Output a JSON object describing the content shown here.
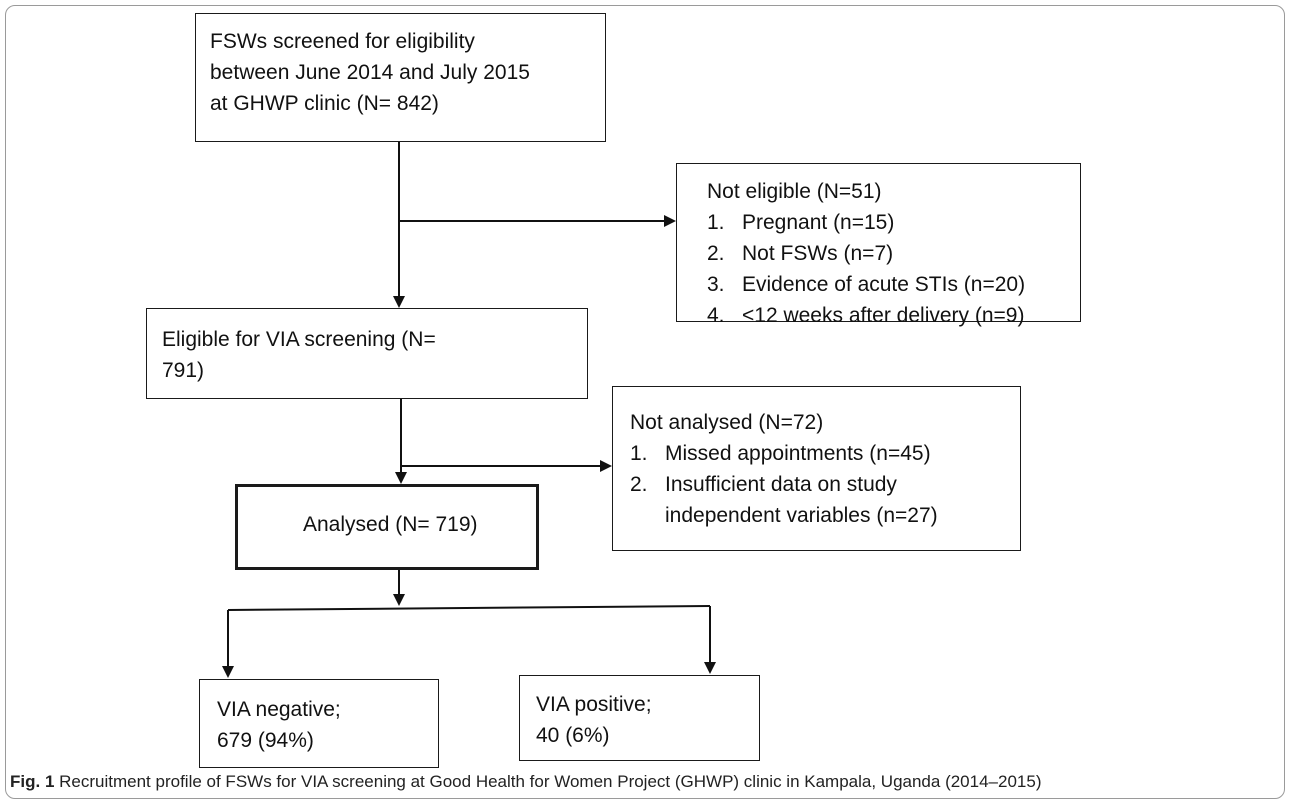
{
  "boxes": {
    "screened": {
      "lines": [
        "FSWs screened for eligibility",
        "between June 2014 and July 2015",
        "at GHWP clinic (N= 842)"
      ]
    },
    "not_eligible": {
      "title": "Not eligible (N=51)",
      "items": [
        {
          "num": "1.",
          "text": "Pregnant (n=15)"
        },
        {
          "num": "2.",
          "text": "Not FSWs (n=7)"
        },
        {
          "num": "3.",
          "text": "Evidence of acute STIs (n=20)"
        },
        {
          "num": "4.",
          "text": "<12 weeks after delivery (n=9)"
        }
      ]
    },
    "eligible": {
      "lines": [
        "Eligible for VIA screening (N=",
        "791)"
      ]
    },
    "not_analysed": {
      "title": "Not analysed (N=72)",
      "items": [
        {
          "num": "1.",
          "text": "Missed appointments (n=45)"
        },
        {
          "num": "2.",
          "text": "Insufficient data on study"
        },
        {
          "num": "",
          "text": "independent variables (n=27)"
        }
      ]
    },
    "analysed": {
      "label": "Analysed (N= 719)"
    },
    "via_negative": {
      "lines": [
        "VIA negative;",
        "679 (94%)"
      ]
    },
    "via_positive": {
      "lines": [
        "VIA positive;",
        "40 (6%)"
      ]
    }
  },
  "caption": {
    "label": "Fig. 1",
    "text": "Recruitment profile of FSWs for VIA screening at Good Health for Women Project (GHWP) clinic in Kampala, Uganda (2014–2015)"
  }
}
